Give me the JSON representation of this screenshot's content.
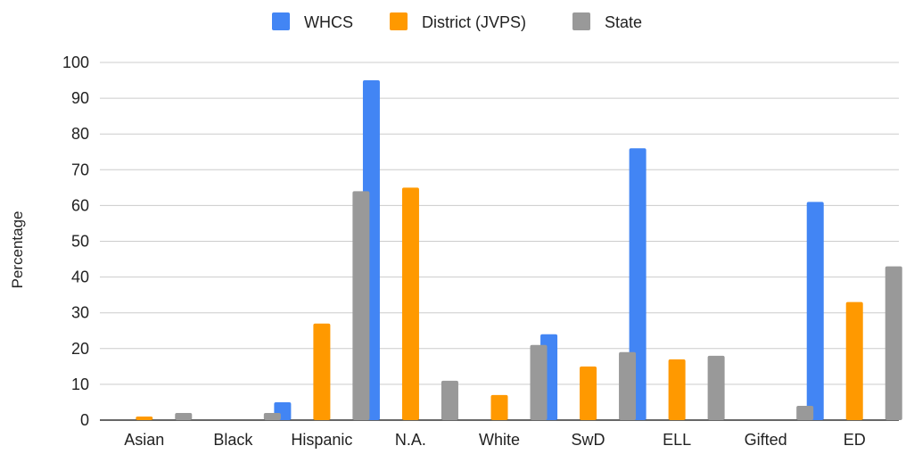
{
  "chart_data": {
    "type": "bar",
    "title": "",
    "xlabel": "",
    "ylabel": "Percentage",
    "ylim": [
      0,
      100
    ],
    "yticks": [
      0,
      10,
      20,
      30,
      40,
      50,
      60,
      70,
      80,
      90,
      100
    ],
    "grid": true,
    "legend_position": "top-center",
    "categories": [
      "Asian",
      "Black",
      "Hispanic",
      "N.A.",
      "White",
      "SwD",
      "ELL",
      "Gifted",
      "ED"
    ],
    "series": [
      {
        "name": "WHCS",
        "color": "#4285f4",
        "values": [
          0,
          0,
          5,
          95,
          0,
          24,
          76,
          0,
          61
        ]
      },
      {
        "name": "District (JVPS)",
        "color": "#ff9900",
        "values": [
          1,
          0,
          27,
          65,
          7,
          15,
          17,
          0,
          33
        ]
      },
      {
        "name": "State",
        "color": "#999999",
        "values": [
          2,
          2,
          64,
          11,
          21,
          19,
          18,
          4,
          43
        ]
      }
    ]
  }
}
